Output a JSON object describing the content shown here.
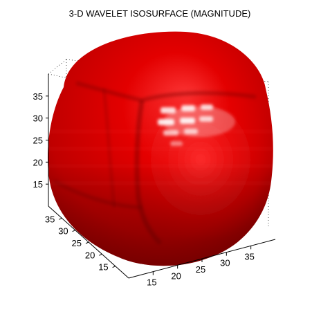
{
  "figure": {
    "background": "#ffffff"
  },
  "chart_data": {
    "type": "isosurface",
    "title": "3-D WAVELET ISOSURFACE (MAGNITUDE)",
    "surface_color": "#d40000",
    "highlight_color": "#ffffff",
    "axes": {
      "x": {
        "label": "",
        "range": [
          10,
          40
        ],
        "ticks": [
          15,
          20,
          25,
          30,
          35
        ],
        "tick_labels": [
          "15",
          "20",
          "25",
          "30",
          "35"
        ]
      },
      "y": {
        "label": "",
        "range": [
          10,
          40
        ],
        "ticks": [
          15,
          20,
          25,
          30,
          35
        ],
        "tick_labels": [
          "15",
          "20",
          "25",
          "30",
          "35"
        ]
      },
      "z": {
        "label": "",
        "range": [
          10,
          40
        ],
        "ticks": [
          15,
          20,
          25,
          30,
          35
        ],
        "tick_labels": [
          "15",
          "20",
          "25",
          "30",
          "35"
        ]
      }
    },
    "grid": false,
    "box": true,
    "legend": "none"
  }
}
